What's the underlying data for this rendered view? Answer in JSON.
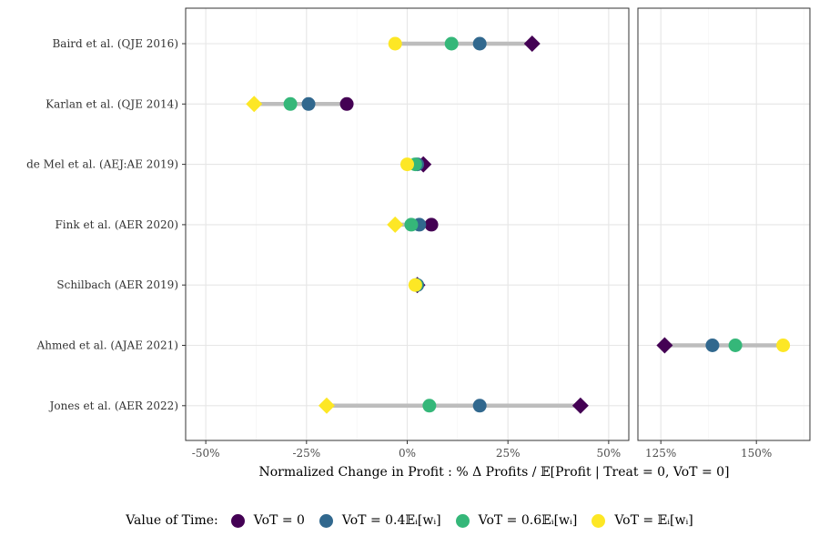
{
  "chart_data": {
    "type": "scatter",
    "xlabel": "Normalized Change in Profit :  % Δ Profits / 𝔼[Profit | Treat = 0, VoT = 0]",
    "grid": true,
    "panels": [
      {
        "xlim": [
          -0.55,
          0.55
        ],
        "ticks": [
          -0.5,
          -0.25,
          0,
          0.25,
          0.5
        ],
        "tick_labels": [
          "-50%",
          "-25%",
          "0%",
          "25%",
          "50%"
        ]
      },
      {
        "xlim": [
          1.19,
          1.64
        ],
        "ticks": [
          1.25,
          1.5
        ],
        "tick_labels": [
          "125%",
          "150%"
        ]
      }
    ],
    "studies": [
      "Baird et al. (QJE 2016)",
      "Karlan et al. (QJE 2014)",
      "de Mel et al. (AEJ:AE 2019)",
      "Fink et al. (AER 2020)",
      "Schilbach (AER 2019)",
      "Ahmed et al. (AJAE 2021)",
      "Jones et al. (AER 2022)"
    ],
    "series": [
      {
        "name": "VoT = 0",
        "color": "#440154",
        "values": [
          0.31,
          -0.15,
          0.04,
          0.06,
          0.025,
          1.26,
          0.43
        ],
        "shapes": [
          "diamond",
          "circle",
          "diamond",
          "circle",
          "diamond",
          "diamond",
          "diamond"
        ]
      },
      {
        "name": "VoT = 0.4𝔼ᵢ[wᵢ]",
        "color": "#31688e",
        "values": [
          0.18,
          -0.245,
          0.025,
          0.03,
          0.025,
          1.385,
          0.18
        ],
        "shapes": [
          "circle",
          "circle",
          "circle",
          "circle",
          "circle",
          "circle",
          "circle"
        ]
      },
      {
        "name": "VoT = 0.6𝔼ᵢ[wᵢ]",
        "color": "#35b779",
        "values": [
          0.11,
          -0.29,
          0.02,
          0.01,
          0.022,
          1.445,
          0.055
        ],
        "shapes": [
          "circle",
          "circle",
          "circle",
          "circle",
          "circle",
          "circle",
          "circle"
        ]
      },
      {
        "name": "VoT = 𝔼ᵢ[wᵢ]",
        "color": "#fde725",
        "values": [
          -0.03,
          -0.38,
          0.0,
          -0.03,
          0.02,
          1.57,
          -0.2
        ],
        "shapes": [
          "circle",
          "diamond",
          "circle",
          "diamond",
          "circle",
          "circle",
          "diamond"
        ]
      }
    ],
    "legend": {
      "title": "Value of Time:",
      "position": "bottom"
    }
  }
}
